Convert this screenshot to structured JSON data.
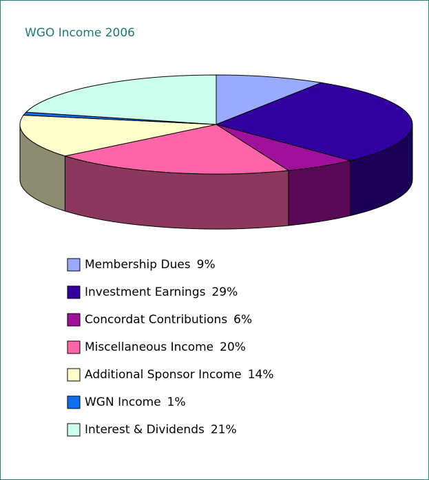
{
  "chart_data": {
    "type": "pie",
    "title": "WGO Income 2006",
    "categories": [
      "Membership Dues",
      "Investment Earnings",
      "Concordat Contributions",
      "Miscellaneous Income",
      "Additional Sponsor Income",
      "WGN Income",
      "Interest & Dividends"
    ],
    "values": [
      9,
      29,
      6,
      20,
      14,
      1,
      21
    ],
    "value_labels": [
      "9%",
      "29%",
      "6%",
      "20%",
      "14%",
      "1%",
      "21%"
    ],
    "colors": [
      "#99aaff",
      "#3300a0",
      "#a0109a",
      "#ff66aa",
      "#ffffcc",
      "#0a70f0",
      "#ccffee"
    ]
  }
}
